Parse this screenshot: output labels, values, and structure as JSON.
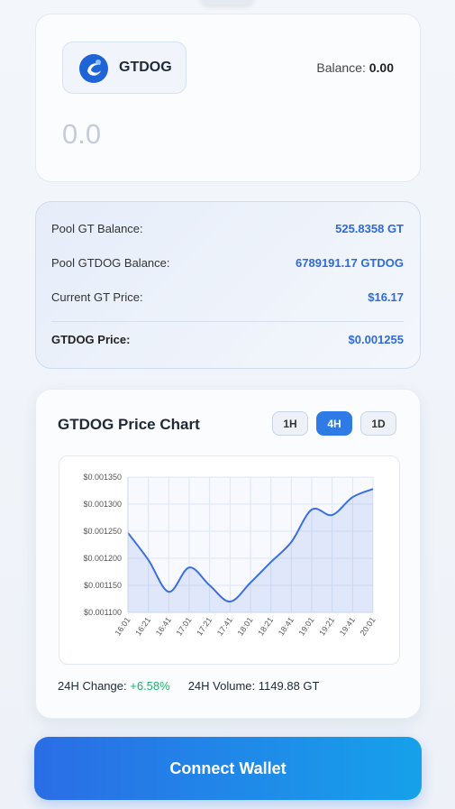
{
  "token_selector": {
    "symbol": "GTDOG"
  },
  "balance": {
    "label": "Balance:",
    "value": "0.00"
  },
  "amount_input": {
    "placeholder": "0.0"
  },
  "pool_info": {
    "rows": [
      {
        "label": "Pool GT Balance:",
        "value": "525.8358 GT"
      },
      {
        "label": "Pool GTDOG Balance:",
        "value": "6789191.17 GTDOG"
      },
      {
        "label": "Current GT Price:",
        "value": "$16.17"
      },
      {
        "label": "GTDOG Price:",
        "value": "$0.001255"
      }
    ]
  },
  "chart_card": {
    "title": "GTDOG Price Chart",
    "timeframes": [
      "1H",
      "4H",
      "1D"
    ],
    "active_timeframe": "4H"
  },
  "chart_data": {
    "type": "line",
    "categories": [
      "16:01",
      "16:21",
      "16:41",
      "17:01",
      "17:21",
      "17:41",
      "18:01",
      "18:21",
      "18:41",
      "19:01",
      "19:21",
      "19:41",
      "20:01"
    ],
    "values": [
      0.001247,
      0.001197,
      0.001138,
      0.001183,
      0.00115,
      0.00112,
      0.001155,
      0.001193,
      0.00123,
      0.00129,
      0.00128,
      0.001313,
      0.001328
    ],
    "color": "#3b6fe0",
    "area": true,
    "grid": true,
    "ylim": [
      0.0011,
      0.00135
    ],
    "yticks": [
      {
        "value": 0.0011,
        "label": "$0.001100"
      },
      {
        "value": 0.00115,
        "label": "$0.001150"
      },
      {
        "value": 0.0012,
        "label": "$0.001200"
      },
      {
        "value": 0.00125,
        "label": "$0.001250"
      },
      {
        "value": 0.0013,
        "label": "$0.001300"
      },
      {
        "value": 0.00135,
        "label": "$0.001350"
      }
    ]
  },
  "stats": [
    {
      "label": "24H Change:",
      "value": "+6.58%"
    },
    {
      "label": "24H Volume:",
      "value": "1149.88 GT"
    }
  ],
  "connect_button": {
    "label": "Connect Wallet"
  }
}
